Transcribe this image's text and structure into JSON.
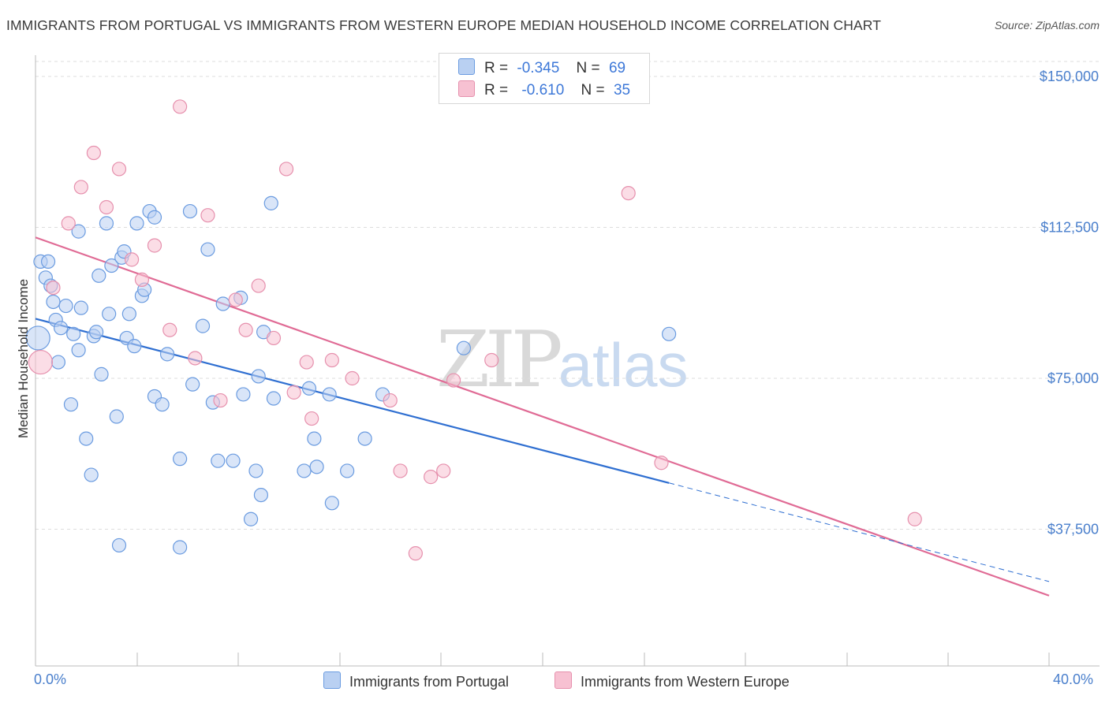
{
  "title": "IMMIGRANTS FROM PORTUGAL VS IMMIGRANTS FROM WESTERN EUROPE MEDIAN HOUSEHOLD INCOME CORRELATION CHART",
  "source": "Source: ZipAtlas.com",
  "watermark": {
    "zip": "ZIP",
    "atlas": "atlas"
  },
  "legend": {
    "series1": {
      "r_label": "R =",
      "r_value": "-0.345",
      "n_label": "N =",
      "n_value": "69"
    },
    "series2": {
      "r_label": "R =",
      "r_value": "-0.610",
      "n_label": "N =",
      "n_value": "35"
    }
  },
  "colors": {
    "blue_fill": "#b9d0f2",
    "blue_stroke": "#6a9be0",
    "blue_line": "#2f6fd1",
    "pink_fill": "#f7c1d2",
    "pink_stroke": "#e690ad",
    "pink_line": "#e06b95",
    "grid": "#dddddd",
    "tick_text": "#4a7fcc"
  },
  "chart_data": {
    "type": "scatter",
    "title": "IMMIGRANTS FROM PORTUGAL VS IMMIGRANTS FROM WESTERN EUROPE MEDIAN HOUSEHOLD INCOME CORRELATION CHART",
    "xlabel": "",
    "ylabel": "Median Household Income",
    "x_tick_labels": [
      "0.0%",
      "40.0%"
    ],
    "y_tick_labels": [
      "$37,500",
      "$75,000",
      "$112,500",
      "$150,000"
    ],
    "y_ticks": [
      37500,
      75000,
      112500,
      150000
    ],
    "xlim": [
      0,
      40
    ],
    "ylim": [
      0,
      155000
    ],
    "grid": "horizontal dashed",
    "legend_position": "top-center",
    "series": [
      {
        "name": "Immigrants from Portugal",
        "color": "#6a9be0",
        "r": -0.345,
        "n": 69,
        "trend": {
          "x": [
            0,
            25
          ],
          "y": [
            89800,
            49000
          ],
          "dashed_extension": {
            "x": [
              25,
              40
            ],
            "y": [
              49000,
              24500
            ]
          }
        },
        "points": [
          {
            "x": 0.1,
            "y": 85000,
            "big": true
          },
          {
            "x": 0.2,
            "y": 104000
          },
          {
            "x": 0.4,
            "y": 100000
          },
          {
            "x": 0.5,
            "y": 104000
          },
          {
            "x": 0.6,
            "y": 98000
          },
          {
            "x": 0.7,
            "y": 94000
          },
          {
            "x": 0.8,
            "y": 89500
          },
          {
            "x": 0.9,
            "y": 79000
          },
          {
            "x": 1.0,
            "y": 87500
          },
          {
            "x": 1.2,
            "y": 93000
          },
          {
            "x": 1.4,
            "y": 68500
          },
          {
            "x": 1.5,
            "y": 86000
          },
          {
            "x": 1.7,
            "y": 111500
          },
          {
            "x": 1.7,
            "y": 82000
          },
          {
            "x": 1.8,
            "y": 92500
          },
          {
            "x": 2.0,
            "y": 60000
          },
          {
            "x": 2.2,
            "y": 51000
          },
          {
            "x": 2.3,
            "y": 85500
          },
          {
            "x": 2.4,
            "y": 86500
          },
          {
            "x": 2.5,
            "y": 100500
          },
          {
            "x": 2.6,
            "y": 76000
          },
          {
            "x": 2.8,
            "y": 113500
          },
          {
            "x": 2.9,
            "y": 91000
          },
          {
            "x": 3.0,
            "y": 103000
          },
          {
            "x": 3.2,
            "y": 65500
          },
          {
            "x": 3.3,
            "y": 33500
          },
          {
            "x": 3.4,
            "y": 105000
          },
          {
            "x": 3.5,
            "y": 106500
          },
          {
            "x": 3.6,
            "y": 85000
          },
          {
            "x": 3.7,
            "y": 91000
          },
          {
            "x": 3.9,
            "y": 83000
          },
          {
            "x": 4.0,
            "y": 113500
          },
          {
            "x": 4.2,
            "y": 95500
          },
          {
            "x": 4.3,
            "y": 97000
          },
          {
            "x": 4.5,
            "y": 116500
          },
          {
            "x": 4.7,
            "y": 115000
          },
          {
            "x": 4.7,
            "y": 70500
          },
          {
            "x": 5.0,
            "y": 68500
          },
          {
            "x": 5.2,
            "y": 81000
          },
          {
            "x": 5.7,
            "y": 55000
          },
          {
            "x": 5.7,
            "y": 33000
          },
          {
            "x": 6.1,
            "y": 116500
          },
          {
            "x": 6.2,
            "y": 73500
          },
          {
            "x": 6.6,
            "y": 88000
          },
          {
            "x": 6.8,
            "y": 107000
          },
          {
            "x": 7.0,
            "y": 69000
          },
          {
            "x": 7.2,
            "y": 54500
          },
          {
            "x": 7.4,
            "y": 93500
          },
          {
            "x": 7.8,
            "y": 54500
          },
          {
            "x": 8.1,
            "y": 95000
          },
          {
            "x": 8.2,
            "y": 71000
          },
          {
            "x": 8.5,
            "y": 40000
          },
          {
            "x": 8.7,
            "y": 52000
          },
          {
            "x": 8.8,
            "y": 75500
          },
          {
            "x": 8.9,
            "y": 46000
          },
          {
            "x": 9.0,
            "y": 86500
          },
          {
            "x": 9.3,
            "y": 118500
          },
          {
            "x": 9.4,
            "y": 70000
          },
          {
            "x": 10.6,
            "y": 52000
          },
          {
            "x": 10.8,
            "y": 72500
          },
          {
            "x": 11.0,
            "y": 60000
          },
          {
            "x": 11.1,
            "y": 53000
          },
          {
            "x": 11.6,
            "y": 71000
          },
          {
            "x": 11.7,
            "y": 44000
          },
          {
            "x": 12.3,
            "y": 52000
          },
          {
            "x": 13.0,
            "y": 60000
          },
          {
            "x": 13.7,
            "y": 71000
          },
          {
            "x": 16.9,
            "y": 82500
          },
          {
            "x": 25.0,
            "y": 86000
          }
        ]
      },
      {
        "name": "Immigrants from Western Europe",
        "color": "#e690ad",
        "r": -0.61,
        "n": 35,
        "trend": {
          "x": [
            0,
            40
          ],
          "y": [
            110000,
            21000
          ]
        },
        "points": [
          {
            "x": 0.2,
            "y": 79000,
            "big": true
          },
          {
            "x": 0.7,
            "y": 97500
          },
          {
            "x": 1.3,
            "y": 113500
          },
          {
            "x": 1.8,
            "y": 122500
          },
          {
            "x": 2.3,
            "y": 131000
          },
          {
            "x": 2.8,
            "y": 117500
          },
          {
            "x": 3.3,
            "y": 127000
          },
          {
            "x": 3.8,
            "y": 104500
          },
          {
            "x": 4.2,
            "y": 99500
          },
          {
            "x": 4.7,
            "y": 108000
          },
          {
            "x": 5.3,
            "y": 87000
          },
          {
            "x": 5.7,
            "y": 142500
          },
          {
            "x": 6.3,
            "y": 80000
          },
          {
            "x": 6.8,
            "y": 115500
          },
          {
            "x": 7.3,
            "y": 69500
          },
          {
            "x": 7.9,
            "y": 94500
          },
          {
            "x": 8.3,
            "y": 87000
          },
          {
            "x": 8.8,
            "y": 98000
          },
          {
            "x": 9.4,
            "y": 85000
          },
          {
            "x": 9.9,
            "y": 127000
          },
          {
            "x": 10.2,
            "y": 71500
          },
          {
            "x": 10.7,
            "y": 79000
          },
          {
            "x": 10.9,
            "y": 65000
          },
          {
            "x": 11.7,
            "y": 79500
          },
          {
            "x": 12.5,
            "y": 75000
          },
          {
            "x": 14.0,
            "y": 69500
          },
          {
            "x": 14.4,
            "y": 52000
          },
          {
            "x": 15.0,
            "y": 31500
          },
          {
            "x": 15.6,
            "y": 50500
          },
          {
            "x": 16.1,
            "y": 52000
          },
          {
            "x": 16.5,
            "y": 74500
          },
          {
            "x": 18.0,
            "y": 79500
          },
          {
            "x": 23.4,
            "y": 121000
          },
          {
            "x": 24.7,
            "y": 54000
          },
          {
            "x": 34.7,
            "y": 40000
          }
        ]
      }
    ]
  }
}
